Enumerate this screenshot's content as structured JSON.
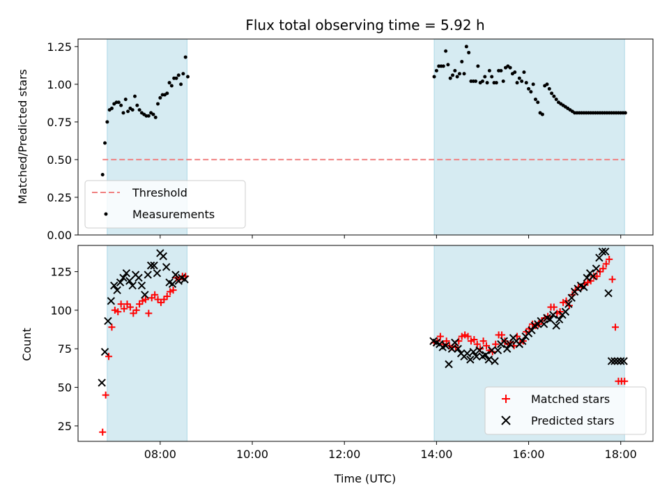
{
  "chart_data": [
    {
      "type": "scatter",
      "title": "Flux total observing time = 5.92 h",
      "xlabel": "",
      "ylabel": "Matched/Predicted stars",
      "ylim": [
        0.0,
        1.3
      ],
      "x_ticks": [
        "08:00",
        "10:00",
        "12:00",
        "14:00",
        "16:00",
        "18:00"
      ],
      "y_ticks": [
        "0.00",
        "0.25",
        "0.50",
        "0.75",
        "1.00",
        "1.25"
      ],
      "shaded_intervals": [
        [
          "06:51",
          "08:35"
        ],
        [
          "13:57",
          "18:05"
        ]
      ],
      "threshold": {
        "name": "Threshold",
        "value": 0.5,
        "x_range": [
          "06:45",
          "18:05"
        ],
        "color": "#f08080"
      },
      "legend": {
        "placement": "lower-left",
        "entries": [
          "Threshold",
          "Measurements"
        ]
      },
      "series": [
        {
          "name": "Measurements",
          "color": "#000000",
          "x": [
            "06:45",
            "06:48",
            "06:51",
            "06:54",
            "06:57",
            "07:00",
            "07:03",
            "07:06",
            "07:09",
            "07:12",
            "07:15",
            "07:18",
            "07:21",
            "07:24",
            "07:27",
            "07:30",
            "07:33",
            "07:36",
            "07:39",
            "07:42",
            "07:45",
            "07:48",
            "07:51",
            "07:54",
            "07:57",
            "08:00",
            "08:03",
            "08:06",
            "08:09",
            "08:12",
            "08:15",
            "08:18",
            "08:21",
            "08:24",
            "08:27",
            "08:30",
            "08:33",
            "08:36",
            "13:57",
            "14:00",
            "14:03",
            "14:06",
            "14:09",
            "14:12",
            "14:15",
            "14:18",
            "14:21",
            "14:24",
            "14:27",
            "14:30",
            "14:33",
            "14:36",
            "14:39",
            "14:42",
            "14:45",
            "14:48",
            "14:51",
            "14:54",
            "14:57",
            "15:00",
            "15:03",
            "15:06",
            "15:09",
            "15:12",
            "15:15",
            "15:18",
            "15:21",
            "15:24",
            "15:27",
            "15:30",
            "15:33",
            "15:36",
            "15:39",
            "15:42",
            "15:45",
            "15:48",
            "15:51",
            "15:54",
            "15:57",
            "16:00",
            "16:03",
            "16:06",
            "16:09",
            "16:12",
            "16:15",
            "16:18",
            "16:21",
            "16:24",
            "16:27",
            "16:30",
            "16:33",
            "16:36",
            "16:39",
            "16:42",
            "16:45",
            "16:48",
            "16:51",
            "16:54",
            "16:57",
            "17:00",
            "17:03",
            "17:06",
            "17:09",
            "17:12",
            "17:15",
            "17:18",
            "17:21",
            "17:24",
            "17:27",
            "17:30",
            "17:33",
            "17:36",
            "17:39",
            "17:42",
            "17:45",
            "17:48",
            "17:51",
            "17:54",
            "17:57",
            "18:00",
            "18:03",
            "18:06"
          ],
          "values": [
            0.4,
            0.61,
            0.75,
            0.83,
            0.84,
            0.87,
            0.88,
            0.88,
            0.86,
            0.81,
            0.9,
            0.82,
            0.84,
            0.83,
            0.92,
            0.86,
            0.83,
            0.81,
            0.8,
            0.79,
            0.79,
            0.81,
            0.8,
            0.78,
            0.87,
            0.91,
            0.93,
            0.93,
            0.94,
            1.01,
            0.99,
            1.04,
            1.04,
            1.06,
            1.0,
            1.07,
            1.18,
            1.05,
            1.05,
            1.09,
            1.12,
            1.12,
            1.12,
            1.22,
            1.13,
            1.04,
            1.06,
            1.09,
            1.05,
            1.07,
            1.15,
            1.07,
            1.25,
            1.21,
            1.02,
            1.02,
            1.02,
            1.12,
            1.01,
            1.02,
            1.05,
            1.01,
            1.09,
            1.05,
            1.01,
            1.01,
            1.09,
            1.09,
            1.02,
            1.11,
            1.12,
            1.11,
            1.07,
            1.08,
            1.01,
            1.04,
            1.02,
            1.08,
            1.01,
            0.97,
            0.95,
            1.0,
            0.9,
            0.88,
            0.81,
            0.8,
            0.99,
            1.0,
            0.97,
            0.94,
            0.92,
            0.9,
            0.88,
            0.87,
            0.86,
            0.85,
            0.84,
            0.83,
            0.82,
            0.81,
            0.81,
            0.81,
            0.81,
            0.81,
            0.81,
            0.81,
            0.81,
            0.81,
            0.81,
            0.81,
            0.81,
            0.81,
            0.81,
            0.81,
            0.81,
            0.81,
            0.81,
            0.81,
            0.81,
            0.81,
            0.81,
            0.81
          ]
        }
      ]
    },
    {
      "type": "scatter",
      "title": "",
      "xlabel": "Time (UTC)",
      "ylabel": "Count",
      "ylim": [
        15,
        142
      ],
      "x_ticks": [
        "08:00",
        "10:00",
        "12:00",
        "14:00",
        "16:00",
        "18:00"
      ],
      "y_ticks": [
        "25",
        "50",
        "75",
        "100",
        "125"
      ],
      "shaded_intervals": [
        [
          "06:51",
          "08:35"
        ],
        [
          "13:57",
          "18:05"
        ]
      ],
      "legend": {
        "placement": "lower-right",
        "entries": [
          "Matched stars",
          "Predicted stars"
        ]
      },
      "series": [
        {
          "name": "Matched stars",
          "marker": "+",
          "color": "#ff0000",
          "x": [
            "06:45",
            "06:49",
            "06:53",
            "06:57",
            "07:01",
            "07:05",
            "07:09",
            "07:13",
            "07:17",
            "07:21",
            "07:25",
            "07:29",
            "07:33",
            "07:37",
            "07:41",
            "07:45",
            "07:49",
            "07:53",
            "07:57",
            "08:01",
            "08:05",
            "08:09",
            "08:13",
            "08:17",
            "08:21",
            "08:25",
            "08:29",
            "08:33",
            "13:57",
            "14:01",
            "14:05",
            "14:09",
            "14:13",
            "14:17",
            "14:21",
            "14:25",
            "14:29",
            "14:33",
            "14:37",
            "14:41",
            "14:45",
            "14:49",
            "14:53",
            "14:57",
            "15:01",
            "15:05",
            "15:09",
            "15:13",
            "15:17",
            "15:21",
            "15:25",
            "15:29",
            "15:33",
            "15:37",
            "15:41",
            "15:45",
            "15:49",
            "15:53",
            "15:57",
            "16:01",
            "16:05",
            "16:09",
            "16:13",
            "16:17",
            "16:21",
            "16:25",
            "16:29",
            "16:33",
            "16:37",
            "16:41",
            "16:45",
            "16:49",
            "16:53",
            "16:57",
            "17:01",
            "17:05",
            "17:09",
            "17:13",
            "17:17",
            "17:21",
            "17:25",
            "17:29",
            "17:33",
            "17:37",
            "17:41",
            "17:45",
            "17:49",
            "17:53",
            "17:57",
            "18:01",
            "18:05"
          ],
          "values": [
            21,
            45,
            70,
            89,
            100,
            99,
            104,
            101,
            104,
            102,
            98,
            100,
            104,
            106,
            107,
            98,
            108,
            110,
            107,
            105,
            107,
            109,
            112,
            113,
            121,
            120,
            122,
            122,
            79,
            80,
            83,
            78,
            80,
            77,
            76,
            76,
            80,
            83,
            84,
            83,
            80,
            81,
            78,
            75,
            80,
            77,
            74,
            73,
            78,
            84,
            84,
            80,
            78,
            79,
            77,
            83,
            79,
            80,
            86,
            88,
            91,
            90,
            91,
            93,
            95,
            96,
            102,
            102,
            98,
            99,
            105,
            106,
            103,
            110,
            113,
            115,
            115,
            117,
            118,
            119,
            122,
            122,
            125,
            127,
            130,
            133,
            120,
            89,
            54,
            54,
            54
          ]
        },
        {
          "name": "Predicted stars",
          "marker": "x",
          "color": "#000000",
          "x": [
            "06:44",
            "06:48",
            "06:52",
            "06:56",
            "07:00",
            "07:04",
            "07:08",
            "07:12",
            "07:16",
            "07:20",
            "07:24",
            "07:28",
            "07:32",
            "07:36",
            "07:40",
            "07:44",
            "07:48",
            "07:52",
            "07:56",
            "08:00",
            "08:04",
            "08:08",
            "08:12",
            "08:16",
            "08:20",
            "08:24",
            "08:28",
            "08:32",
            "13:56",
            "14:00",
            "14:04",
            "14:08",
            "14:12",
            "14:16",
            "14:20",
            "14:24",
            "14:28",
            "14:32",
            "14:36",
            "14:40",
            "14:44",
            "14:48",
            "14:52",
            "14:56",
            "15:00",
            "15:04",
            "15:08",
            "15:12",
            "15:16",
            "15:20",
            "15:24",
            "15:28",
            "15:32",
            "15:36",
            "15:40",
            "15:44",
            "15:48",
            "15:52",
            "15:56",
            "16:00",
            "16:04",
            "16:08",
            "16:12",
            "16:16",
            "16:20",
            "16:24",
            "16:28",
            "16:32",
            "16:36",
            "16:40",
            "16:44",
            "16:48",
            "16:52",
            "16:56",
            "17:00",
            "17:04",
            "17:08",
            "17:12",
            "17:16",
            "17:20",
            "17:24",
            "17:28",
            "17:32",
            "17:36",
            "17:40",
            "17:44",
            "17:48",
            "17:52",
            "17:56",
            "18:00",
            "18:04"
          ],
          "values": [
            53,
            73,
            93,
            106,
            116,
            113,
            118,
            121,
            124,
            119,
            116,
            123,
            121,
            116,
            110,
            123,
            129,
            129,
            124,
            137,
            135,
            128,
            118,
            117,
            123,
            119,
            121,
            120,
            80,
            79,
            78,
            76,
            77,
            65,
            75,
            79,
            75,
            72,
            70,
            72,
            68,
            73,
            70,
            74,
            70,
            71,
            68,
            74,
            67,
            74,
            78,
            80,
            75,
            78,
            82,
            80,
            78,
            80,
            83,
            85,
            87,
            90,
            91,
            93,
            91,
            95,
            94,
            97,
            90,
            94,
            97,
            99,
            104,
            108,
            112,
            114,
            116,
            115,
            121,
            124,
            122,
            127,
            134,
            138,
            138,
            111,
            67,
            67,
            67,
            67,
            67
          ]
        }
      ]
    }
  ]
}
